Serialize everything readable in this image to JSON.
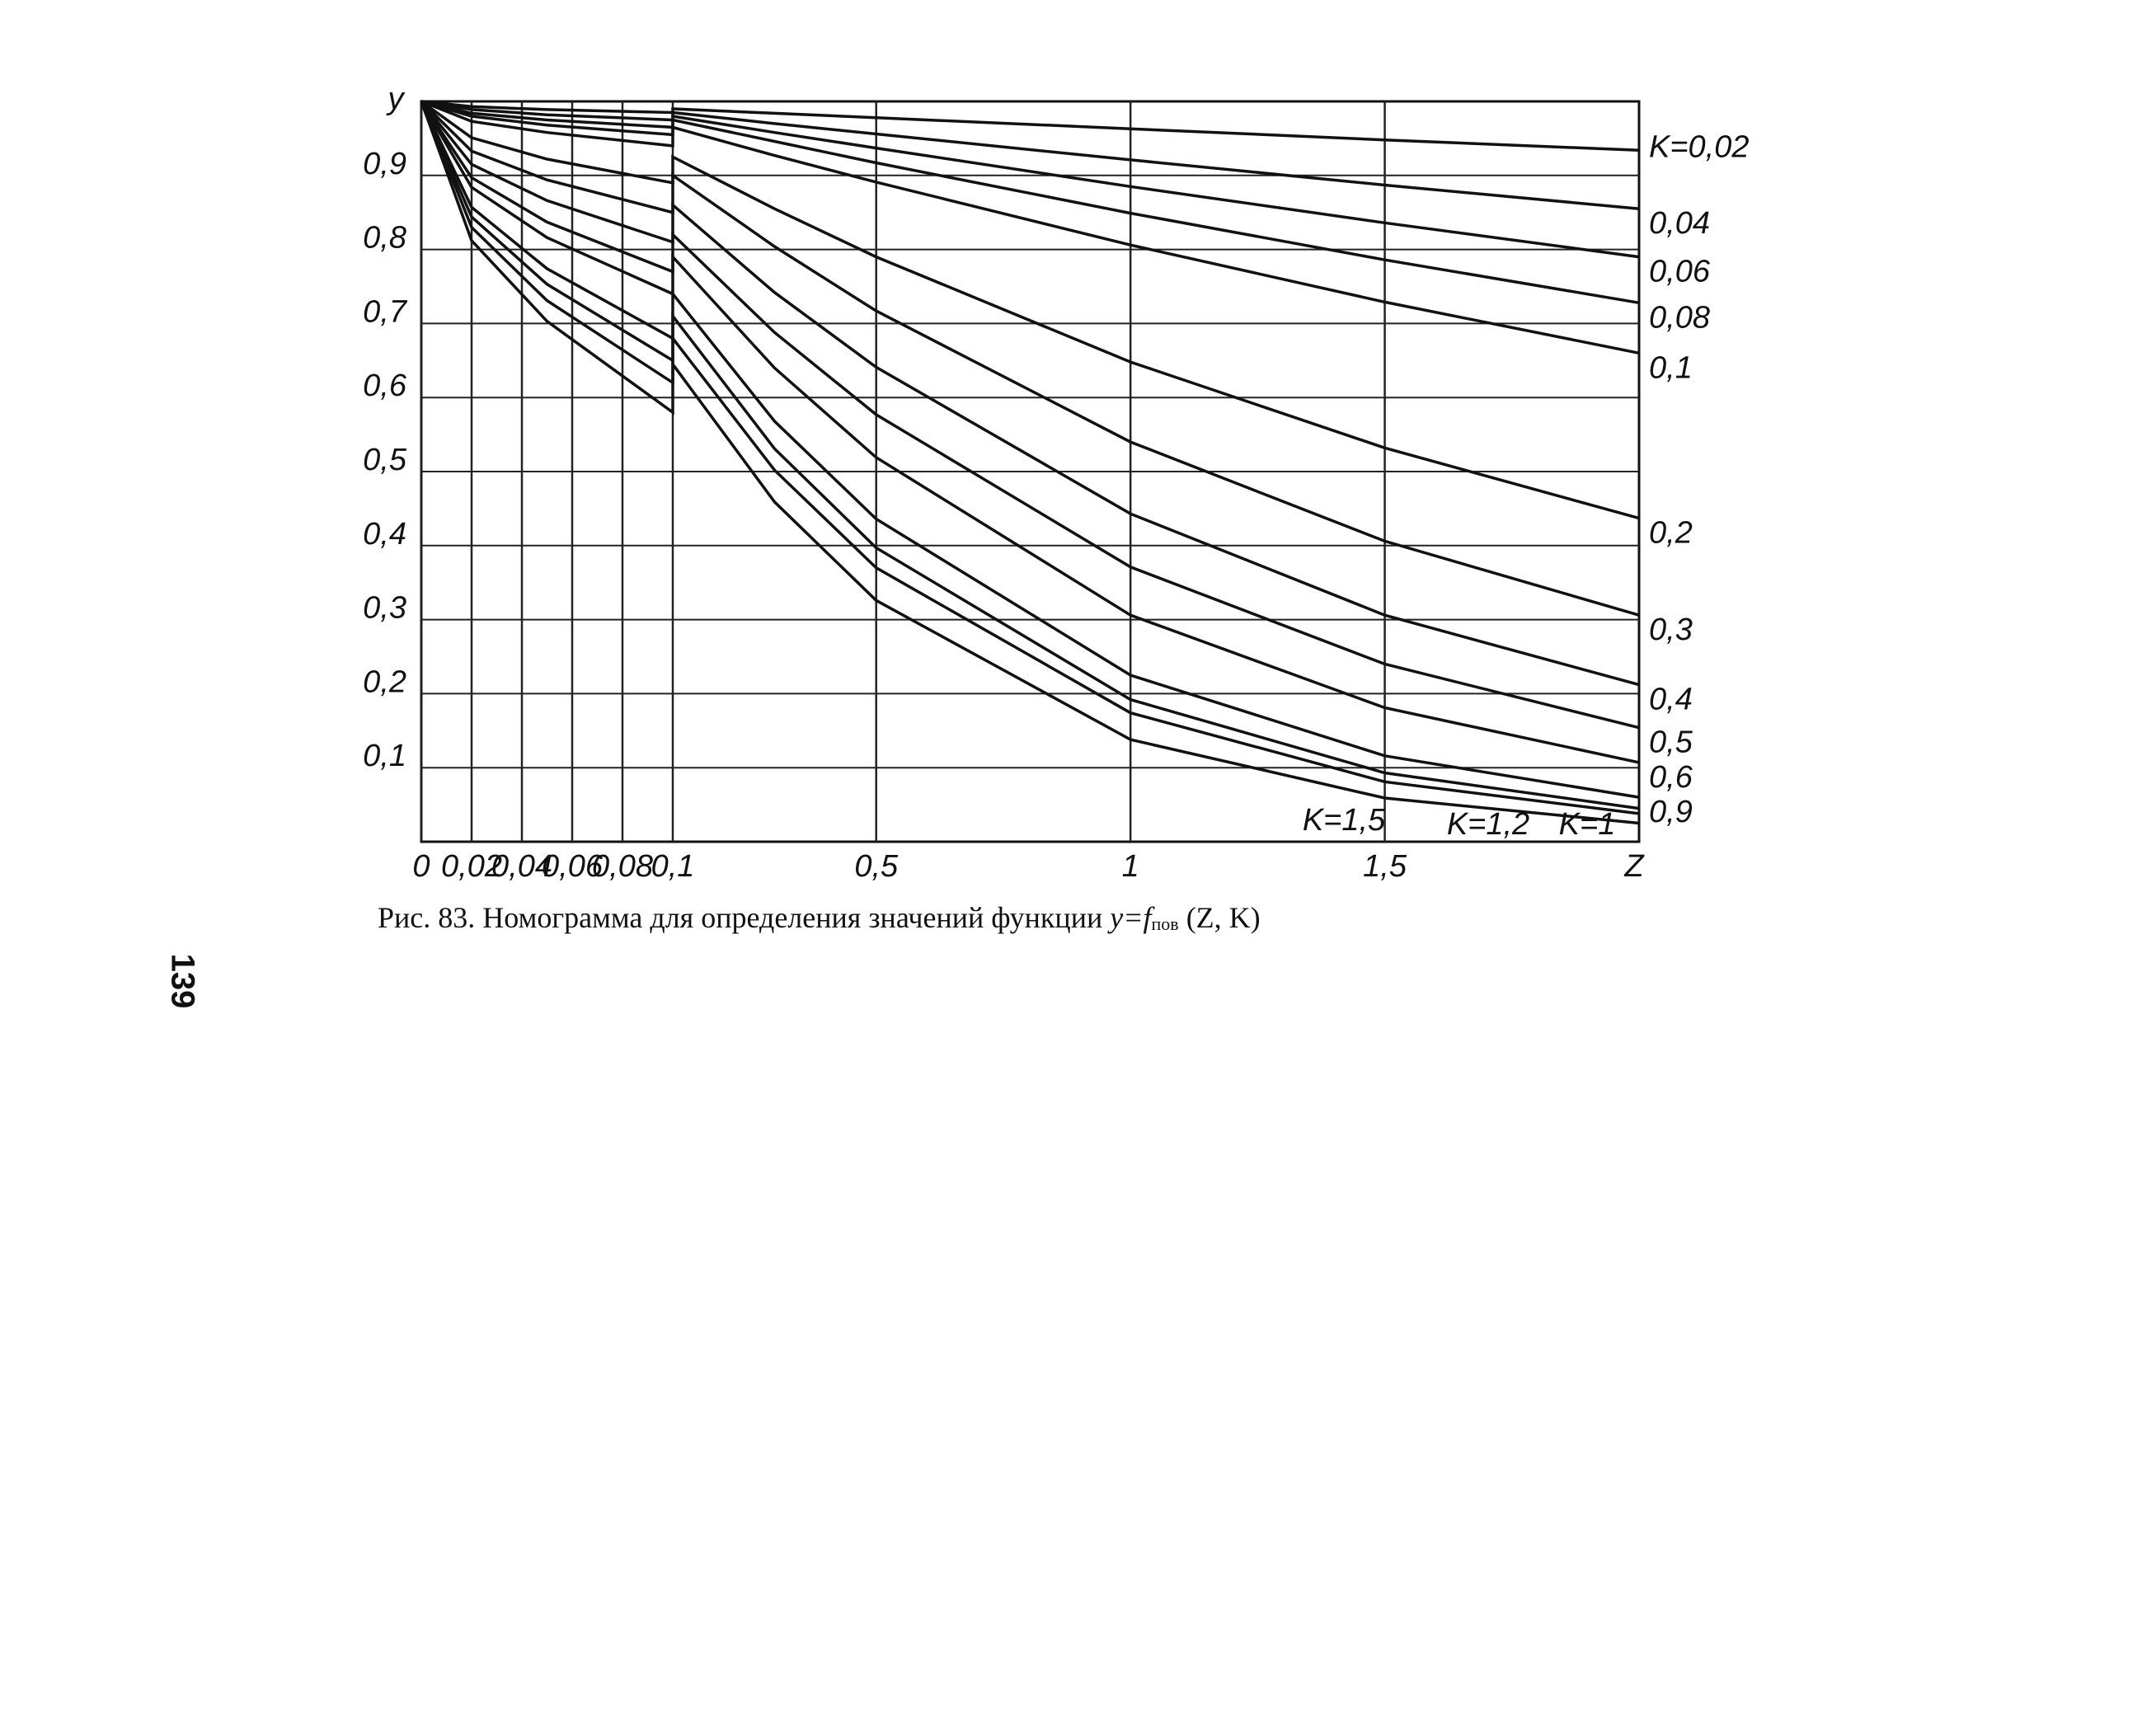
{
  "chart_data": {
    "type": "line",
    "xlabel": "Z",
    "ylabel": "y",
    "caption": {
      "text": "Рис. 83. Номограмма для определения значений функции",
      "function": "y=f",
      "subscript": "пов",
      "arguments": "(Z, K)"
    },
    "page_number": "139",
    "xscale": "piecewise",
    "xbreak": 0.1,
    "xlim": [
      0,
      2
    ],
    "ylim": [
      0,
      1
    ],
    "xticks": [
      0,
      {
        "value": 0.02,
        "label": "0,02"
      },
      {
        "value": 0.04,
        "label": "0,04"
      },
      {
        "value": 0.06,
        "label": "0,06"
      },
      {
        "value": 0.08,
        "label": "0,08"
      },
      {
        "value": 0.1,
        "label": "0,1"
      },
      {
        "value": 0.5,
        "label": "0,5"
      },
      1,
      {
        "value": 1.5,
        "label": "1,5"
      }
    ],
    "yticks": [
      {
        "value": 0.1,
        "label": "0,1"
      },
      {
        "value": 0.2,
        "label": "0,2"
      },
      {
        "value": 0.3,
        "label": "0,3"
      },
      {
        "value": 0.4,
        "label": "0,4"
      },
      {
        "value": 0.5,
        "label": "0,5"
      },
      {
        "value": 0.6,
        "label": "0,6"
      },
      {
        "value": 0.7,
        "label": "0,7"
      },
      {
        "value": 0.8,
        "label": "0,8"
      },
      {
        "value": 0.9,
        "label": "0,9"
      }
    ],
    "grid": true,
    "color": "#111111",
    "x": [
      0,
      0.02,
      0.05,
      0.1,
      0.1,
      0.3,
      0.5,
      1,
      1.5,
      2
    ],
    "series": [
      {
        "name": "K=0,02",
        "values": [
          1,
          0.993,
          0.989,
          0.985,
          0.99,
          0.984,
          0.978,
          0.963,
          0.948,
          0.934
        ]
      },
      {
        "name": "0,04",
        "values": [
          1,
          0.989,
          0.982,
          0.975,
          0.985,
          0.97,
          0.956,
          0.921,
          0.887,
          0.855
        ]
      },
      {
        "name": "0,06",
        "values": [
          1,
          0.984,
          0.975,
          0.965,
          0.98,
          0.958,
          0.937,
          0.885,
          0.836,
          0.79
        ]
      },
      {
        "name": "0,08",
        "values": [
          1,
          0.98,
          0.968,
          0.955,
          0.975,
          0.946,
          0.917,
          0.849,
          0.786,
          0.728
        ]
      },
      {
        "name": "0,1",
        "values": [
          1,
          0.973,
          0.958,
          0.94,
          0.965,
          0.927,
          0.891,
          0.806,
          0.729,
          0.66
        ]
      },
      {
        "name": "0,2",
        "values": [
          1,
          0.951,
          0.922,
          0.89,
          0.925,
          0.855,
          0.79,
          0.648,
          0.532,
          0.437
        ]
      },
      {
        "name": "0,3",
        "values": [
          1,
          0.933,
          0.894,
          0.85,
          0.9,
          0.804,
          0.717,
          0.54,
          0.406,
          0.306
        ]
      },
      {
        "name": "0,4",
        "values": [
          1,
          0.915,
          0.866,
          0.81,
          0.86,
          0.742,
          0.641,
          0.443,
          0.306,
          0.212
        ]
      },
      {
        "name": "0,5",
        "values": [
          1,
          0.897,
          0.837,
          0.77,
          0.82,
          0.688,
          0.577,
          0.371,
          0.24,
          0.154
        ]
      },
      {
        "name": "0,6",
        "values": [
          1,
          0.884,
          0.816,
          0.74,
          0.79,
          0.64,
          0.519,
          0.306,
          0.181,
          0.107
        ]
      },
      {
        "name": "0,9",
        "values": [
          1,
          0.857,
          0.774,
          0.68,
          0.74,
          0.568,
          0.436,
          0.225,
          0.116,
          0.06
        ]
      },
      {
        "name": "K=1",
        "values": [
          1,
          0.844,
          0.753,
          0.65,
          0.71,
          0.531,
          0.397,
          0.192,
          0.093,
          0.045
        ]
      },
      {
        "name": "K=1,2",
        "values": [
          1,
          0.83,
          0.731,
          0.62,
          0.68,
          0.502,
          0.37,
          0.174,
          0.081,
          0.038
        ]
      },
      {
        "name": "K=1,5",
        "values": [
          1,
          0.812,
          0.703,
          0.58,
          0.645,
          0.459,
          0.326,
          0.138,
          0.059,
          0.025
        ]
      }
    ]
  }
}
